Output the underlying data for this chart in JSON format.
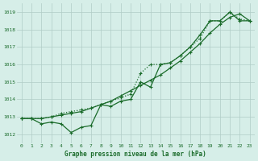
{
  "title": "Graphe pression niveau de la mer (hPa)",
  "xlabel": "Graphe pression niveau de la mer (hPa)",
  "ylim": [
    1011.5,
    1019.5
  ],
  "xlim": [
    -0.5,
    23.5
  ],
  "yticks": [
    1012,
    1013,
    1014,
    1015,
    1016,
    1017,
    1018,
    1019
  ],
  "xticks": [
    0,
    1,
    2,
    3,
    4,
    5,
    6,
    7,
    8,
    9,
    10,
    11,
    12,
    13,
    14,
    15,
    16,
    17,
    18,
    19,
    20,
    21,
    22,
    23
  ],
  "bg_color": "#d6eee8",
  "grid_color": "#b0ccc6",
  "line_color": "#1a6b2a",
  "line1": [
    1012.9,
    1012.9,
    1012.6,
    1012.7,
    1012.6,
    1012.1,
    1012.4,
    1012.5,
    1013.7,
    1013.6,
    1013.9,
    1014.0,
    1015.0,
    1014.7,
    1016.0,
    1016.1,
    1016.5,
    1017.0,
    1017.7,
    1018.5,
    1018.5,
    1019.0,
    1018.5,
    1018.5
  ],
  "line2": [
    1012.9,
    1012.9,
    1012.9,
    1013.0,
    1013.1,
    1013.2,
    1013.3,
    1013.5,
    1013.7,
    1013.9,
    1014.2,
    1014.5,
    1014.8,
    1015.1,
    1015.4,
    1015.8,
    1016.2,
    1016.7,
    1017.2,
    1017.8,
    1018.3,
    1018.7,
    1018.9,
    1018.5
  ],
  "line3": [
    1012.9,
    1012.9,
    1012.9,
    1013.0,
    1013.2,
    1013.3,
    1013.4,
    1013.5,
    1013.7,
    1013.9,
    1014.1,
    1014.3,
    1015.5,
    1016.0,
    1016.0,
    1016.1,
    1016.5,
    1017.0,
    1017.5,
    1018.5,
    1018.5,
    1019.0,
    1018.6,
    1018.5
  ]
}
